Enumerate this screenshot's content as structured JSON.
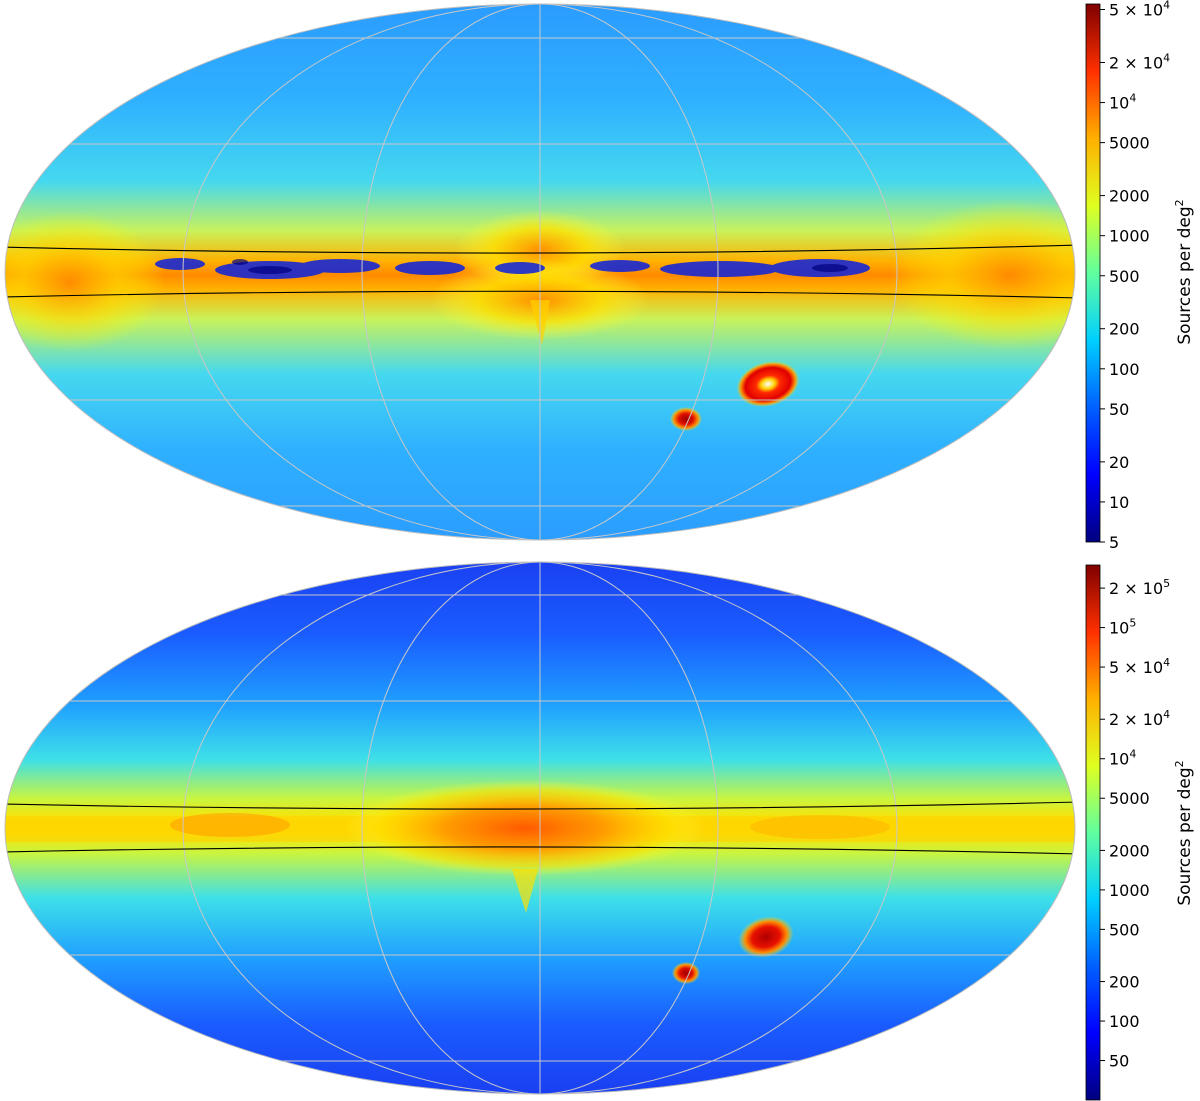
{
  "figure": {
    "colors": {
      "graticule": "#c8c8c8",
      "plane_lines": "#000000",
      "colormap": [
        "#00007f",
        "#0000ff",
        "#007fff",
        "#00dfff",
        "#7fff7f",
        "#ffef00",
        "#ff7f00",
        "#ff1a00",
        "#7f0000"
      ]
    },
    "panels": [
      {
        "id": "top",
        "projection": "mollweide",
        "features": [
          "galactic plane band with dust lanes",
          "galactic bulge",
          "Large Magellanic Cloud",
          "Small Magellanic Cloud"
        ],
        "colorbar": {
          "label": "Sources per deg",
          "label_superscript": "2",
          "scale": "log",
          "range": [
            5,
            55000
          ],
          "ticks": [
            {
              "value": 50000,
              "text": "5 × 10",
              "sup": "4"
            },
            {
              "value": 20000,
              "text": "2 × 10",
              "sup": "4"
            },
            {
              "value": 10000,
              "text": "10",
              "sup": "4"
            },
            {
              "value": 5000,
              "text": "5000",
              "sup": ""
            },
            {
              "value": 2000,
              "text": "2000",
              "sup": ""
            },
            {
              "value": 1000,
              "text": "1000",
              "sup": ""
            },
            {
              "value": 500,
              "text": "500",
              "sup": ""
            },
            {
              "value": 200,
              "text": "200",
              "sup": ""
            },
            {
              "value": 100,
              "text": "100",
              "sup": ""
            },
            {
              "value": 50,
              "text": "50",
              "sup": ""
            },
            {
              "value": 20,
              "text": "20",
              "sup": ""
            },
            {
              "value": 10,
              "text": "10",
              "sup": ""
            },
            {
              "value": 5,
              "text": "5",
              "sup": ""
            }
          ]
        }
      },
      {
        "id": "bottom",
        "projection": "mollweide",
        "features": [
          "galactic plane band",
          "galactic bulge",
          "Large Magellanic Cloud",
          "Small Magellanic Cloud"
        ],
        "colorbar": {
          "label": "Sources per deg",
          "label_superscript": "2",
          "scale": "log",
          "range": [
            25,
            300000
          ],
          "ticks": [
            {
              "value": 200000,
              "text": "2 × 10",
              "sup": "5"
            },
            {
              "value": 100000,
              "text": "10",
              "sup": "5"
            },
            {
              "value": 50000,
              "text": "5 × 10",
              "sup": "4"
            },
            {
              "value": 20000,
              "text": "2 × 10",
              "sup": "4"
            },
            {
              "value": 10000,
              "text": "10",
              "sup": "4"
            },
            {
              "value": 5000,
              "text": "5000",
              "sup": ""
            },
            {
              "value": 2000,
              "text": "2000",
              "sup": ""
            },
            {
              "value": 1000,
              "text": "1000",
              "sup": ""
            },
            {
              "value": 500,
              "text": "500",
              "sup": ""
            },
            {
              "value": 200,
              "text": "200",
              "sup": ""
            },
            {
              "value": 100,
              "text": "100",
              "sup": ""
            },
            {
              "value": 50,
              "text": "50",
              "sup": ""
            }
          ]
        }
      }
    ]
  }
}
